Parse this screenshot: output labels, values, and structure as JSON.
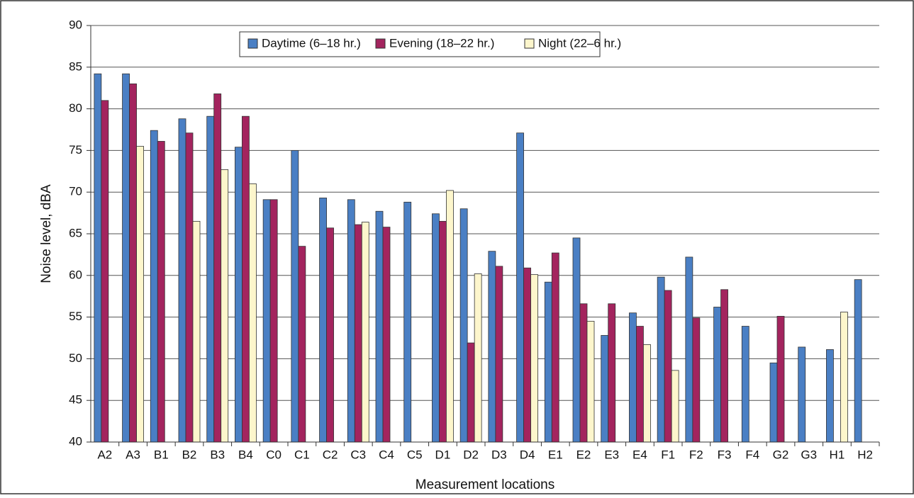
{
  "chart_data": {
    "type": "bar",
    "x_label": "Measurement locations",
    "y_label": "Noise level, dBA",
    "categories": [
      "A2",
      "A3",
      "B1",
      "B2",
      "B3",
      "B4",
      "C0",
      "C1",
      "C2",
      "C3",
      "C4",
      "C5",
      "D1",
      "D2",
      "D3",
      "D4",
      "E1",
      "E2",
      "E3",
      "E4",
      "F1",
      "F2",
      "F3",
      "F4",
      "G2",
      "G3",
      "H1",
      "H2"
    ],
    "series": [
      {
        "name": "Daytime (6–18 hr.)",
        "color": "#4a7fc4",
        "values": [
          84.2,
          84.2,
          77.4,
          78.8,
          79.1,
          75.4,
          69.1,
          75,
          69.3,
          69.1,
          67.7,
          68.8,
          67.4,
          68,
          62.9,
          77.1,
          59.2,
          64.5,
          52.8,
          55.5,
          59.8,
          62.2,
          56.2,
          53.9,
          49.5,
          51.4,
          51.1,
          59.5
        ]
      },
      {
        "name": "Evening (18–22 hr.)",
        "color": "#a3245e",
        "values": [
          81,
          83,
          76.1,
          77.1,
          81.8,
          79.1,
          69.1,
          63.5,
          65.7,
          66.1,
          65.8,
          null,
          66.5,
          51.9,
          61.1,
          60.9,
          62.7,
          56.6,
          56.6,
          53.9,
          58.2,
          54.9,
          58.3,
          null,
          55.1,
          null,
          null,
          null
        ]
      },
      {
        "name": "Night (22–6 hr.)",
        "color": "#fdf6cc",
        "values": [
          null,
          75.5,
          null,
          66.5,
          72.7,
          71,
          null,
          null,
          null,
          66.4,
          null,
          null,
          70.2,
          60.2,
          null,
          60.1,
          null,
          54.5,
          null,
          51.7,
          48.6,
          null,
          null,
          null,
          null,
          null,
          55.6,
          null
        ]
      }
    ],
    "ylim": [
      40,
      90
    ],
    "yticks": [
      40,
      45,
      50,
      55,
      60,
      65,
      70,
      75,
      80,
      85,
      90
    ],
    "grid": true,
    "legend": "top"
  }
}
